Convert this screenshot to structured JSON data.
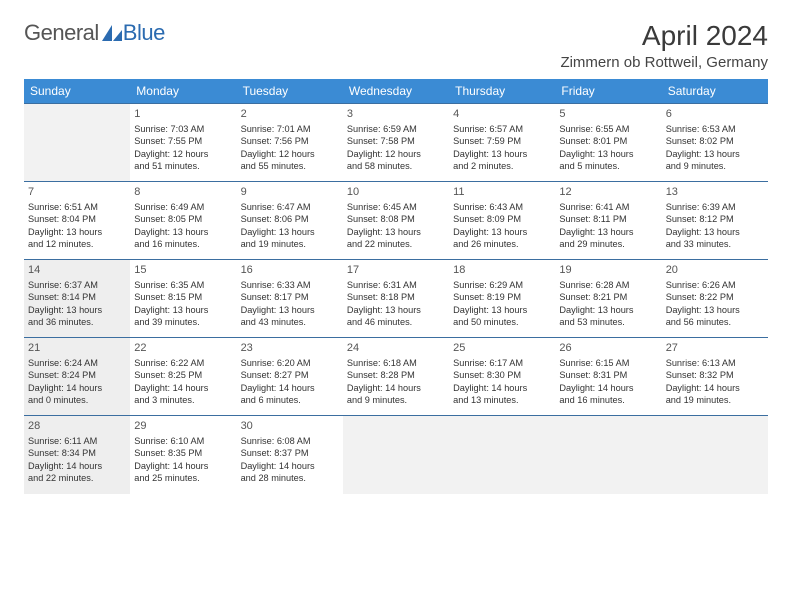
{
  "logo": {
    "text1": "General",
    "text2": "Blue"
  },
  "title": "April 2024",
  "location": "Zimmern ob Rottweil, Germany",
  "colors": {
    "header_bg": "#3b8bd4",
    "header_text": "#ffffff",
    "rule": "#3b6ea0",
    "empty_bg": "#f2f2f2",
    "shaded_bg": "#eeeeee",
    "text": "#333333"
  },
  "days_of_week": [
    "Sunday",
    "Monday",
    "Tuesday",
    "Wednesday",
    "Thursday",
    "Friday",
    "Saturday"
  ],
  "weeks": [
    [
      {
        "empty": true
      },
      {
        "n": "1",
        "sr": "Sunrise: 7:03 AM",
        "ss": "Sunset: 7:55 PM",
        "d1": "Daylight: 12 hours",
        "d2": "and 51 minutes."
      },
      {
        "n": "2",
        "sr": "Sunrise: 7:01 AM",
        "ss": "Sunset: 7:56 PM",
        "d1": "Daylight: 12 hours",
        "d2": "and 55 minutes."
      },
      {
        "n": "3",
        "sr": "Sunrise: 6:59 AM",
        "ss": "Sunset: 7:58 PM",
        "d1": "Daylight: 12 hours",
        "d2": "and 58 minutes."
      },
      {
        "n": "4",
        "sr": "Sunrise: 6:57 AM",
        "ss": "Sunset: 7:59 PM",
        "d1": "Daylight: 13 hours",
        "d2": "and 2 minutes."
      },
      {
        "n": "5",
        "sr": "Sunrise: 6:55 AM",
        "ss": "Sunset: 8:01 PM",
        "d1": "Daylight: 13 hours",
        "d2": "and 5 minutes."
      },
      {
        "n": "6",
        "sr": "Sunrise: 6:53 AM",
        "ss": "Sunset: 8:02 PM",
        "d1": "Daylight: 13 hours",
        "d2": "and 9 minutes."
      }
    ],
    [
      {
        "n": "7",
        "sr": "Sunrise: 6:51 AM",
        "ss": "Sunset: 8:04 PM",
        "d1": "Daylight: 13 hours",
        "d2": "and 12 minutes."
      },
      {
        "n": "8",
        "sr": "Sunrise: 6:49 AM",
        "ss": "Sunset: 8:05 PM",
        "d1": "Daylight: 13 hours",
        "d2": "and 16 minutes."
      },
      {
        "n": "9",
        "sr": "Sunrise: 6:47 AM",
        "ss": "Sunset: 8:06 PM",
        "d1": "Daylight: 13 hours",
        "d2": "and 19 minutes."
      },
      {
        "n": "10",
        "sr": "Sunrise: 6:45 AM",
        "ss": "Sunset: 8:08 PM",
        "d1": "Daylight: 13 hours",
        "d2": "and 22 minutes."
      },
      {
        "n": "11",
        "sr": "Sunrise: 6:43 AM",
        "ss": "Sunset: 8:09 PM",
        "d1": "Daylight: 13 hours",
        "d2": "and 26 minutes."
      },
      {
        "n": "12",
        "sr": "Sunrise: 6:41 AM",
        "ss": "Sunset: 8:11 PM",
        "d1": "Daylight: 13 hours",
        "d2": "and 29 minutes."
      },
      {
        "n": "13",
        "sr": "Sunrise: 6:39 AM",
        "ss": "Sunset: 8:12 PM",
        "d1": "Daylight: 13 hours",
        "d2": "and 33 minutes."
      }
    ],
    [
      {
        "n": "14",
        "shaded": true,
        "sr": "Sunrise: 6:37 AM",
        "ss": "Sunset: 8:14 PM",
        "d1": "Daylight: 13 hours",
        "d2": "and 36 minutes."
      },
      {
        "n": "15",
        "sr": "Sunrise: 6:35 AM",
        "ss": "Sunset: 8:15 PM",
        "d1": "Daylight: 13 hours",
        "d2": "and 39 minutes."
      },
      {
        "n": "16",
        "sr": "Sunrise: 6:33 AM",
        "ss": "Sunset: 8:17 PM",
        "d1": "Daylight: 13 hours",
        "d2": "and 43 minutes."
      },
      {
        "n": "17",
        "sr": "Sunrise: 6:31 AM",
        "ss": "Sunset: 8:18 PM",
        "d1": "Daylight: 13 hours",
        "d2": "and 46 minutes."
      },
      {
        "n": "18",
        "sr": "Sunrise: 6:29 AM",
        "ss": "Sunset: 8:19 PM",
        "d1": "Daylight: 13 hours",
        "d2": "and 50 minutes."
      },
      {
        "n": "19",
        "sr": "Sunrise: 6:28 AM",
        "ss": "Sunset: 8:21 PM",
        "d1": "Daylight: 13 hours",
        "d2": "and 53 minutes."
      },
      {
        "n": "20",
        "sr": "Sunrise: 6:26 AM",
        "ss": "Sunset: 8:22 PM",
        "d1": "Daylight: 13 hours",
        "d2": "and 56 minutes."
      }
    ],
    [
      {
        "n": "21",
        "shaded": true,
        "sr": "Sunrise: 6:24 AM",
        "ss": "Sunset: 8:24 PM",
        "d1": "Daylight: 14 hours",
        "d2": "and 0 minutes."
      },
      {
        "n": "22",
        "sr": "Sunrise: 6:22 AM",
        "ss": "Sunset: 8:25 PM",
        "d1": "Daylight: 14 hours",
        "d2": "and 3 minutes."
      },
      {
        "n": "23",
        "sr": "Sunrise: 6:20 AM",
        "ss": "Sunset: 8:27 PM",
        "d1": "Daylight: 14 hours",
        "d2": "and 6 minutes."
      },
      {
        "n": "24",
        "sr": "Sunrise: 6:18 AM",
        "ss": "Sunset: 8:28 PM",
        "d1": "Daylight: 14 hours",
        "d2": "and 9 minutes."
      },
      {
        "n": "25",
        "sr": "Sunrise: 6:17 AM",
        "ss": "Sunset: 8:30 PM",
        "d1": "Daylight: 14 hours",
        "d2": "and 13 minutes."
      },
      {
        "n": "26",
        "sr": "Sunrise: 6:15 AM",
        "ss": "Sunset: 8:31 PM",
        "d1": "Daylight: 14 hours",
        "d2": "and 16 minutes."
      },
      {
        "n": "27",
        "sr": "Sunrise: 6:13 AM",
        "ss": "Sunset: 8:32 PM",
        "d1": "Daylight: 14 hours",
        "d2": "and 19 minutes."
      }
    ],
    [
      {
        "n": "28",
        "shaded": true,
        "sr": "Sunrise: 6:11 AM",
        "ss": "Sunset: 8:34 PM",
        "d1": "Daylight: 14 hours",
        "d2": "and 22 minutes."
      },
      {
        "n": "29",
        "sr": "Sunrise: 6:10 AM",
        "ss": "Sunset: 8:35 PM",
        "d1": "Daylight: 14 hours",
        "d2": "and 25 minutes."
      },
      {
        "n": "30",
        "sr": "Sunrise: 6:08 AM",
        "ss": "Sunset: 8:37 PM",
        "d1": "Daylight: 14 hours",
        "d2": "and 28 minutes."
      },
      {
        "empty": true
      },
      {
        "empty": true
      },
      {
        "empty": true
      },
      {
        "empty": true
      }
    ]
  ]
}
